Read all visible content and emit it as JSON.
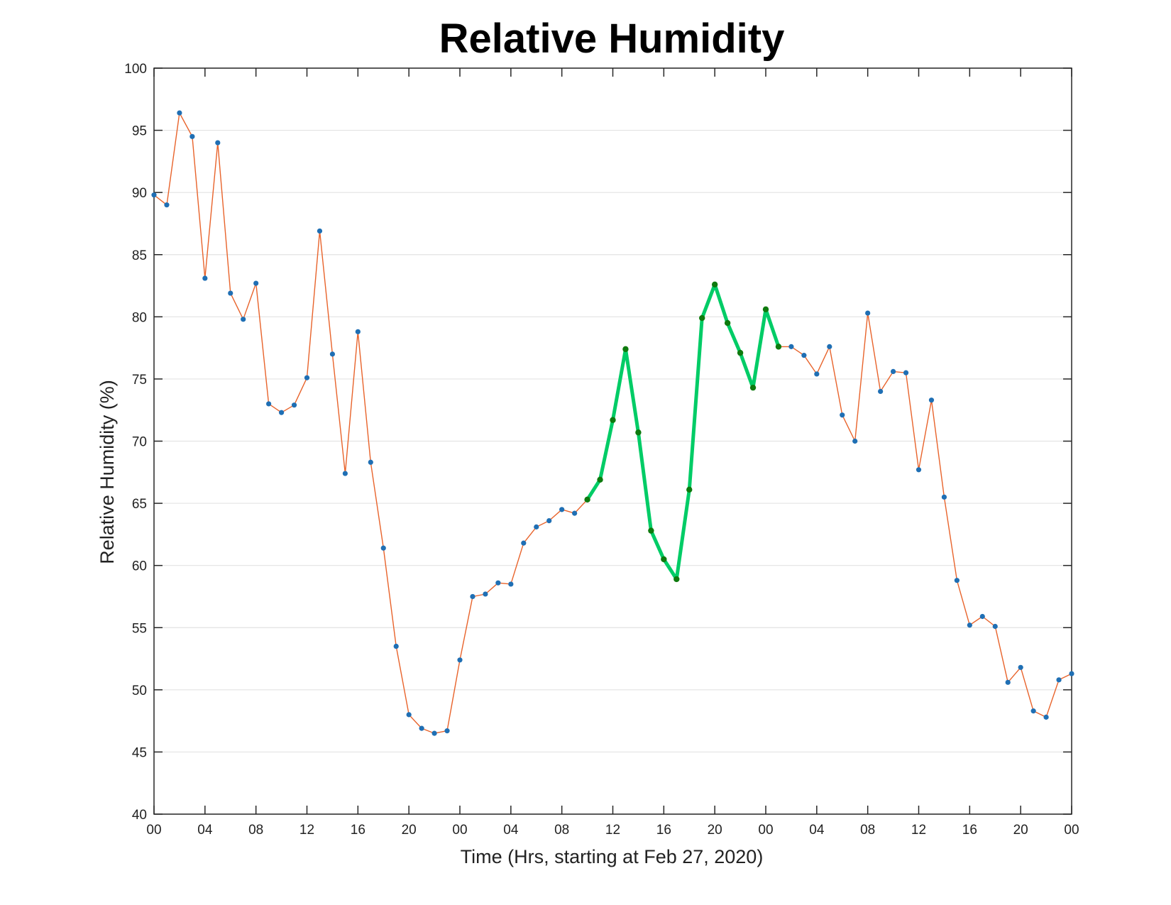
{
  "chart_data": {
    "type": "line",
    "title": "Relative Humidity",
    "xlabel": "Time (Hrs, starting at Feb 27, 2020)",
    "ylabel": "Relative Humidity (%)",
    "x_unit": "hours",
    "xlim": [
      0,
      72
    ],
    "ylim": [
      40,
      100
    ],
    "grid": "horizontal",
    "x_ticks": [
      {
        "value": 0,
        "label": "00"
      },
      {
        "value": 4,
        "label": "04"
      },
      {
        "value": 8,
        "label": "08"
      },
      {
        "value": 12,
        "label": "12"
      },
      {
        "value": 16,
        "label": "16"
      },
      {
        "value": 20,
        "label": "20"
      },
      {
        "value": 24,
        "label": "00"
      },
      {
        "value": 28,
        "label": "04"
      },
      {
        "value": 32,
        "label": "08"
      },
      {
        "value": 36,
        "label": "12"
      },
      {
        "value": 40,
        "label": "16"
      },
      {
        "value": 44,
        "label": "20"
      },
      {
        "value": 48,
        "label": "00"
      },
      {
        "value": 52,
        "label": "04"
      },
      {
        "value": 56,
        "label": "08"
      },
      {
        "value": 60,
        "label": "12"
      },
      {
        "value": 64,
        "label": "16"
      },
      {
        "value": 68,
        "label": "20"
      },
      {
        "value": 72,
        "label": "00"
      }
    ],
    "y_ticks": [
      {
        "value": 40,
        "label": "40"
      },
      {
        "value": 45,
        "label": "45"
      },
      {
        "value": 50,
        "label": "50"
      },
      {
        "value": 55,
        "label": "55"
      },
      {
        "value": 60,
        "label": "60"
      },
      {
        "value": 65,
        "label": "65"
      },
      {
        "value": 70,
        "label": "70"
      },
      {
        "value": 75,
        "label": "75"
      },
      {
        "value": 80,
        "label": "80"
      },
      {
        "value": 85,
        "label": "85"
      },
      {
        "value": 90,
        "label": "90"
      },
      {
        "value": 95,
        "label": "95"
      },
      {
        "value": 100,
        "label": "100"
      }
    ],
    "series": [
      {
        "x": [
          0,
          1,
          2,
          3,
          4,
          5,
          6,
          7,
          8,
          9,
          10,
          11,
          12,
          13,
          14,
          15,
          16,
          17,
          18,
          19,
          20,
          21,
          22,
          23,
          24,
          25,
          26,
          27,
          28,
          29,
          30,
          31,
          32,
          33,
          34,
          35,
          36,
          37,
          38,
          39,
          40,
          41,
          42,
          43,
          44,
          45,
          46,
          47,
          48,
          49,
          50,
          51,
          52,
          53,
          54,
          55,
          56,
          57,
          58,
          59,
          60,
          61,
          62,
          63,
          64,
          65,
          66,
          67,
          68,
          69,
          70,
          71,
          72
        ],
        "values": [
          89.8,
          89.0,
          96.4,
          94.5,
          83.1,
          94.0,
          81.9,
          79.8,
          82.7,
          73.0,
          72.3,
          72.9,
          75.1,
          86.9,
          77.0,
          67.4,
          78.8,
          68.3,
          61.4,
          53.5,
          48.0,
          46.9,
          46.5,
          46.7,
          52.4,
          57.5,
          57.7,
          58.6,
          58.5,
          61.8,
          63.1,
          63.6,
          64.5,
          64.2,
          65.3,
          66.9,
          71.7,
          77.4,
          70.7,
          62.8,
          60.5,
          58.9,
          66.1,
          79.9,
          82.6,
          79.5,
          77.1,
          74.3,
          80.6,
          77.6,
          77.6,
          76.9,
          75.4,
          77.6,
          72.1,
          70.0,
          80.3,
          74.0,
          75.6,
          75.5,
          67.7,
          73.3,
          65.5,
          58.8,
          55.2,
          55.9,
          55.1,
          50.6,
          51.8,
          48.3,
          47.8,
          50.8,
          51.3
        ],
        "line_color": "#e8632b",
        "marker_color": "#1f6fb4"
      },
      {
        "x": [
          34,
          35,
          36,
          37,
          38,
          39,
          40,
          41,
          42,
          43,
          44,
          45,
          46,
          47,
          48,
          49
        ],
        "values": [
          65.3,
          66.9,
          71.7,
          77.4,
          70.7,
          62.8,
          60.5,
          58.9,
          66.1,
          79.9,
          82.6,
          79.5,
          77.1,
          74.3,
          80.6,
          77.6
        ],
        "line_color": "#00cc66",
        "marker_color": "#0e7a0e",
        "highlight": true
      }
    ]
  }
}
